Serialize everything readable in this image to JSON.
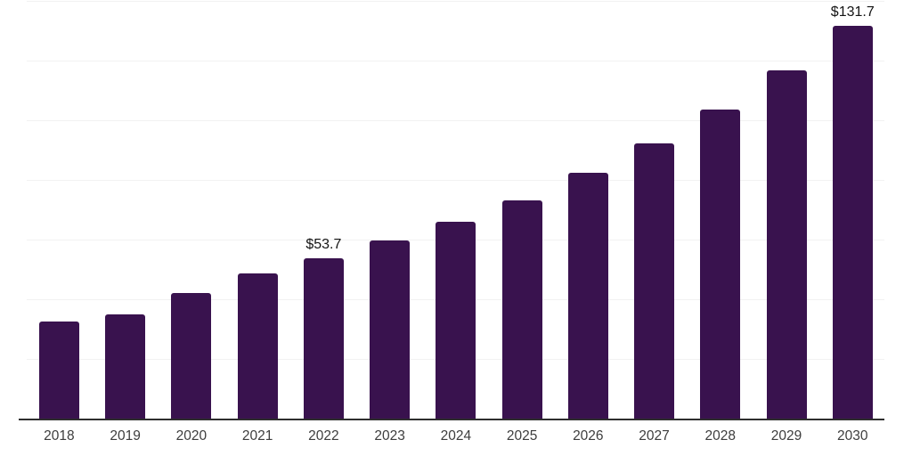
{
  "chart_style": {
    "bar_color": "#39124E",
    "gridline_color": "#f2f2f2",
    "axis_color": "#2e2e2e",
    "tick_label_color": "#3d3d3d",
    "data_label_color": "#141414",
    "background_color": "#ffffff"
  },
  "chart_data": {
    "type": "bar",
    "categories": [
      "2018",
      "2019",
      "2020",
      "2021",
      "2022",
      "2023",
      "2024",
      "2025",
      "2026",
      "2027",
      "2028",
      "2029",
      "2030"
    ],
    "values": [
      32.5,
      34.9,
      42.0,
      48.6,
      53.7,
      59.6,
      65.9,
      73.2,
      82.4,
      92.1,
      103.5,
      116.8,
      131.7
    ],
    "data_labels": [
      null,
      null,
      null,
      null,
      "$53.7",
      null,
      null,
      null,
      null,
      null,
      null,
      null,
      "$131.7"
    ],
    "title": "",
    "xlabel": "",
    "ylabel": "",
    "ylim": [
      0,
      140.3
    ],
    "gridline_step": 20,
    "grid": "horizontal-only",
    "y_tick_labels_visible": false,
    "legend": "none"
  }
}
